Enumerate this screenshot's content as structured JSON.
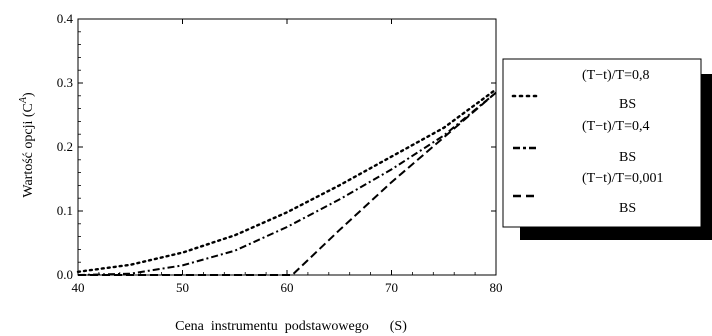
{
  "chart_data": {
    "type": "line",
    "xlabel": "Cena  instrumentu  podstawowego      (S)",
    "ylabel": "Wartość opcji (C",
    "ylabel_sup": "A",
    "ylabel_close": ")",
    "xlim": [
      40,
      80
    ],
    "ylim": [
      0,
      0.4
    ],
    "xticks": [
      "40",
      "50",
      "60",
      "70",
      "80"
    ],
    "yticks": [
      "0.0",
      "0.1",
      "0.2",
      "0.3",
      "0.4"
    ],
    "grid": false,
    "legend_position": "right",
    "series": [
      {
        "name": "(T−t)/T=0,8",
        "sub": "BS",
        "style": "dotted",
        "x": [
          40,
          45,
          50,
          55,
          60,
          65,
          70,
          75,
          80
        ],
        "y": [
          0.005,
          0.016,
          0.035,
          0.062,
          0.098,
          0.14,
          0.185,
          0.23,
          0.29
        ]
      },
      {
        "name": "(T−t)/T=0,4",
        "sub": "BS",
        "style": "dashdot",
        "x": [
          40,
          45,
          50,
          55,
          60,
          65,
          70,
          75,
          80
        ],
        "y": [
          0.0,
          0.002,
          0.015,
          0.038,
          0.075,
          0.118,
          0.165,
          0.218,
          0.285
        ]
      },
      {
        "name": "(T−t)/T=0,001",
        "sub": "BS",
        "style": "dashed",
        "x": [
          40,
          55,
          60,
          60.5,
          65,
          70,
          75,
          80
        ],
        "y": [
          0.0,
          0.0,
          0.0,
          0.0,
          0.07,
          0.145,
          0.215,
          0.285
        ]
      }
    ]
  }
}
